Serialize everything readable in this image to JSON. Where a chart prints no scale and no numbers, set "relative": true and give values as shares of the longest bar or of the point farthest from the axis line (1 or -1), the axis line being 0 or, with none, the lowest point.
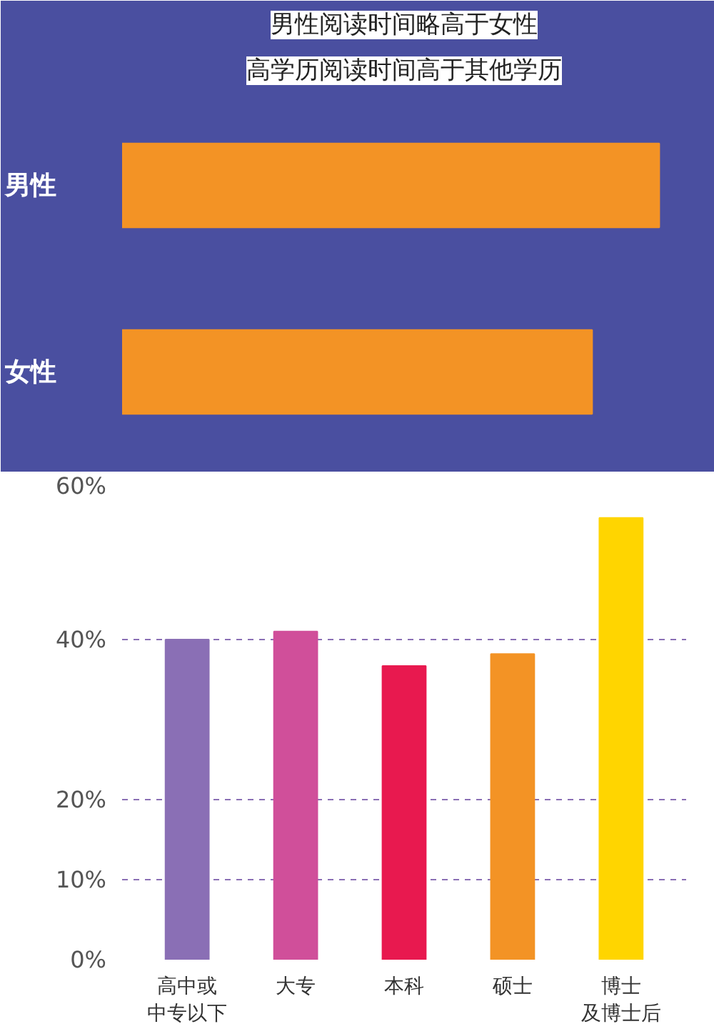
{
  "chart_data": [
    {
      "type": "bar",
      "orientation": "horizontal",
      "relative": true,
      "title": "男性阅读时间略高于女性",
      "subtitle": "高学历阅读时间高于其他学历",
      "categories": [
        "男性",
        "女性"
      ],
      "values": [
        1,
        0.875
      ],
      "color": "#f39325",
      "grid": false
    },
    {
      "type": "bar",
      "categories": [
        "高中或中专以下",
        "大专",
        "本科",
        "硕士",
        "博士及博士后"
      ],
      "values": [
        40,
        41,
        36.7,
        38.2,
        55.2
      ],
      "colors": [
        "#8a6fb5",
        "#d04f9a",
        "#e8194f",
        "#f39325",
        "#ffd500"
      ],
      "ylim": [
        0,
        60
      ],
      "yticks": [
        {
          "value": 0,
          "label": "0%"
        },
        {
          "value": 10,
          "label": "10%"
        },
        {
          "value": 20,
          "label": "20%"
        },
        {
          "value": 40,
          "label": "40%"
        },
        {
          "value": 60,
          "label": "60%"
        }
      ],
      "grid": "y"
    }
  ]
}
